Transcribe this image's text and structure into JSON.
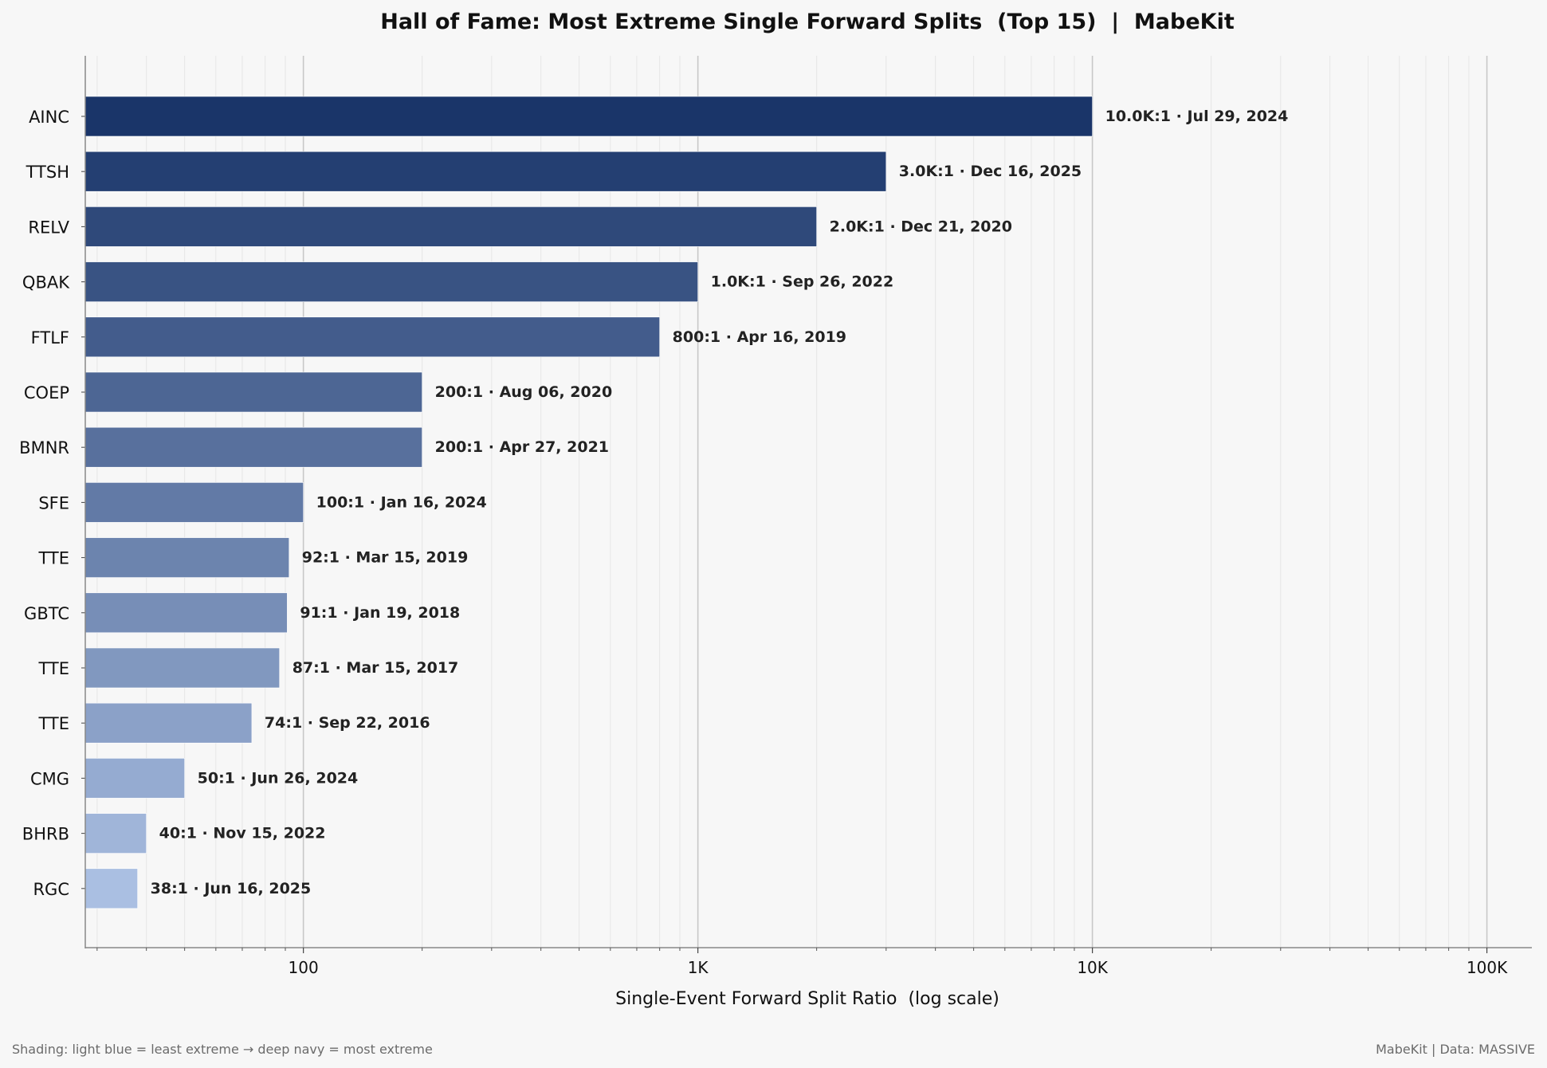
{
  "chart_data": {
    "type": "bar",
    "orientation": "horizontal",
    "title": "Hall of Fame: Most Extreme Single Forward Splits  (Top 15)  |  MabeKit",
    "xlabel": "Single-Event Forward Split Ratio  (log scale)",
    "ylabel": "",
    "x_scale": "log",
    "xlim": [
      28,
      130000
    ],
    "x_ticks": [
      {
        "value": 100,
        "label": "100"
      },
      {
        "value": 1000,
        "label": "1K"
      },
      {
        "value": 10000,
        "label": "10K"
      },
      {
        "value": 100000,
        "label": "100K"
      }
    ],
    "grid": "vertical major and minor",
    "categories": [
      "AINC",
      "TTSH",
      "RELV",
      "QBAK",
      "FTLF",
      "COEP",
      "BMNR",
      "SFE",
      "TTE",
      "GBTC",
      "TTE",
      "TTE",
      "CMG",
      "BHRB",
      "RGC"
    ],
    "values": [
      10000,
      3000,
      2000,
      1000,
      800,
      200,
      200,
      100,
      92,
      91,
      87,
      74,
      50,
      40,
      38
    ],
    "bar_labels": [
      "10.0K:1  ·  Jul 29, 2024",
      "3.0K:1  ·  Dec 16, 2025",
      "2.0K:1  ·  Dec 21, 2020",
      "1.0K:1  ·  Sep 26, 2022",
      "800:1  ·  Apr 16, 2019",
      "200:1  ·  Aug 06, 2020",
      "200:1  ·  Apr 27, 2021",
      "100:1  ·  Jan 16, 2024",
      "92:1  ·  Mar 15, 2019",
      "91:1  ·  Jan 19, 2018",
      "87:1  ·  Mar 15, 2017",
      "74:1  ·  Sep 22, 2016",
      "50:1  ·  Jun 26, 2024",
      "40:1  ·  Nov 15, 2022",
      "38:1  ·  Jun 16, 2025"
    ],
    "colors": {
      "most_extreme": "#1a3569",
      "least_extreme": "#aabfe2",
      "background": "#f7f7f7",
      "label_text": "#222222",
      "grid_major": "#c8c8c8",
      "grid_minor": "#e6e6e6"
    }
  },
  "footer": {
    "left": "Shading: light blue = least extreme   →   deep navy = most extreme",
    "right": "MabeKit  |  Data: MASSIVE"
  }
}
